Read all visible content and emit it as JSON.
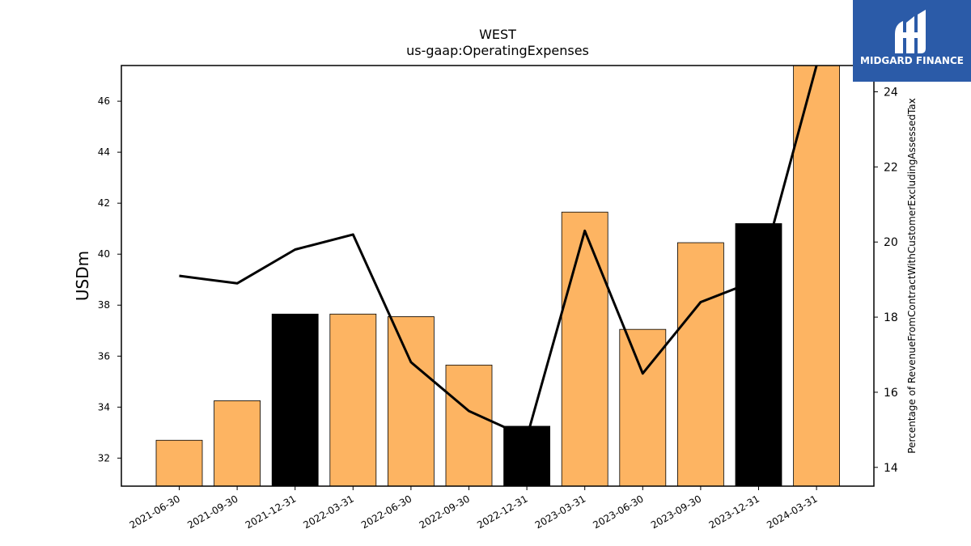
{
  "chart_data": {
    "type": "bar",
    "title": "WEST",
    "subtitle": "us-gaap:OperatingExpenses",
    "ylabel": "USDm",
    "y2label": "Percentage of RevenueFromContractWithCustomerExcludingAssessedTax",
    "categories": [
      "2021-06-30",
      "2021-09-30",
      "2021-12-31",
      "2022-03-31",
      "2022-06-30",
      "2022-09-30",
      "2022-12-31",
      "2023-03-31",
      "2023-06-30",
      "2023-09-30",
      "2023-12-31",
      "2024-03-31"
    ],
    "values": [
      32.7,
      34.25,
      37.65,
      37.65,
      37.55,
      35.65,
      33.25,
      41.65,
      37.05,
      40.45,
      41.2,
      47.5
    ],
    "bar_highlight": [
      false,
      false,
      true,
      false,
      false,
      false,
      true,
      false,
      false,
      false,
      true,
      false
    ],
    "line_values": [
      19.1,
      18.9,
      19.8,
      20.2,
      16.8,
      15.5,
      14.8,
      20.3,
      16.5,
      18.4,
      19.0,
      24.7
    ],
    "ylim": [
      30.9,
      47.4
    ],
    "y2lim": [
      13.5,
      24.7
    ],
    "yticks": [
      32,
      34,
      36,
      38,
      40,
      42,
      44,
      46
    ],
    "y2ticks": [
      14,
      16,
      18,
      20,
      22,
      24
    ],
    "colors": {
      "bar": "#fdb462",
      "bar_highlight": "#000000",
      "line": "#000000"
    }
  },
  "logo": {
    "text": "MIDGARD FINANCE",
    "bg": "#2b5ba8"
  }
}
